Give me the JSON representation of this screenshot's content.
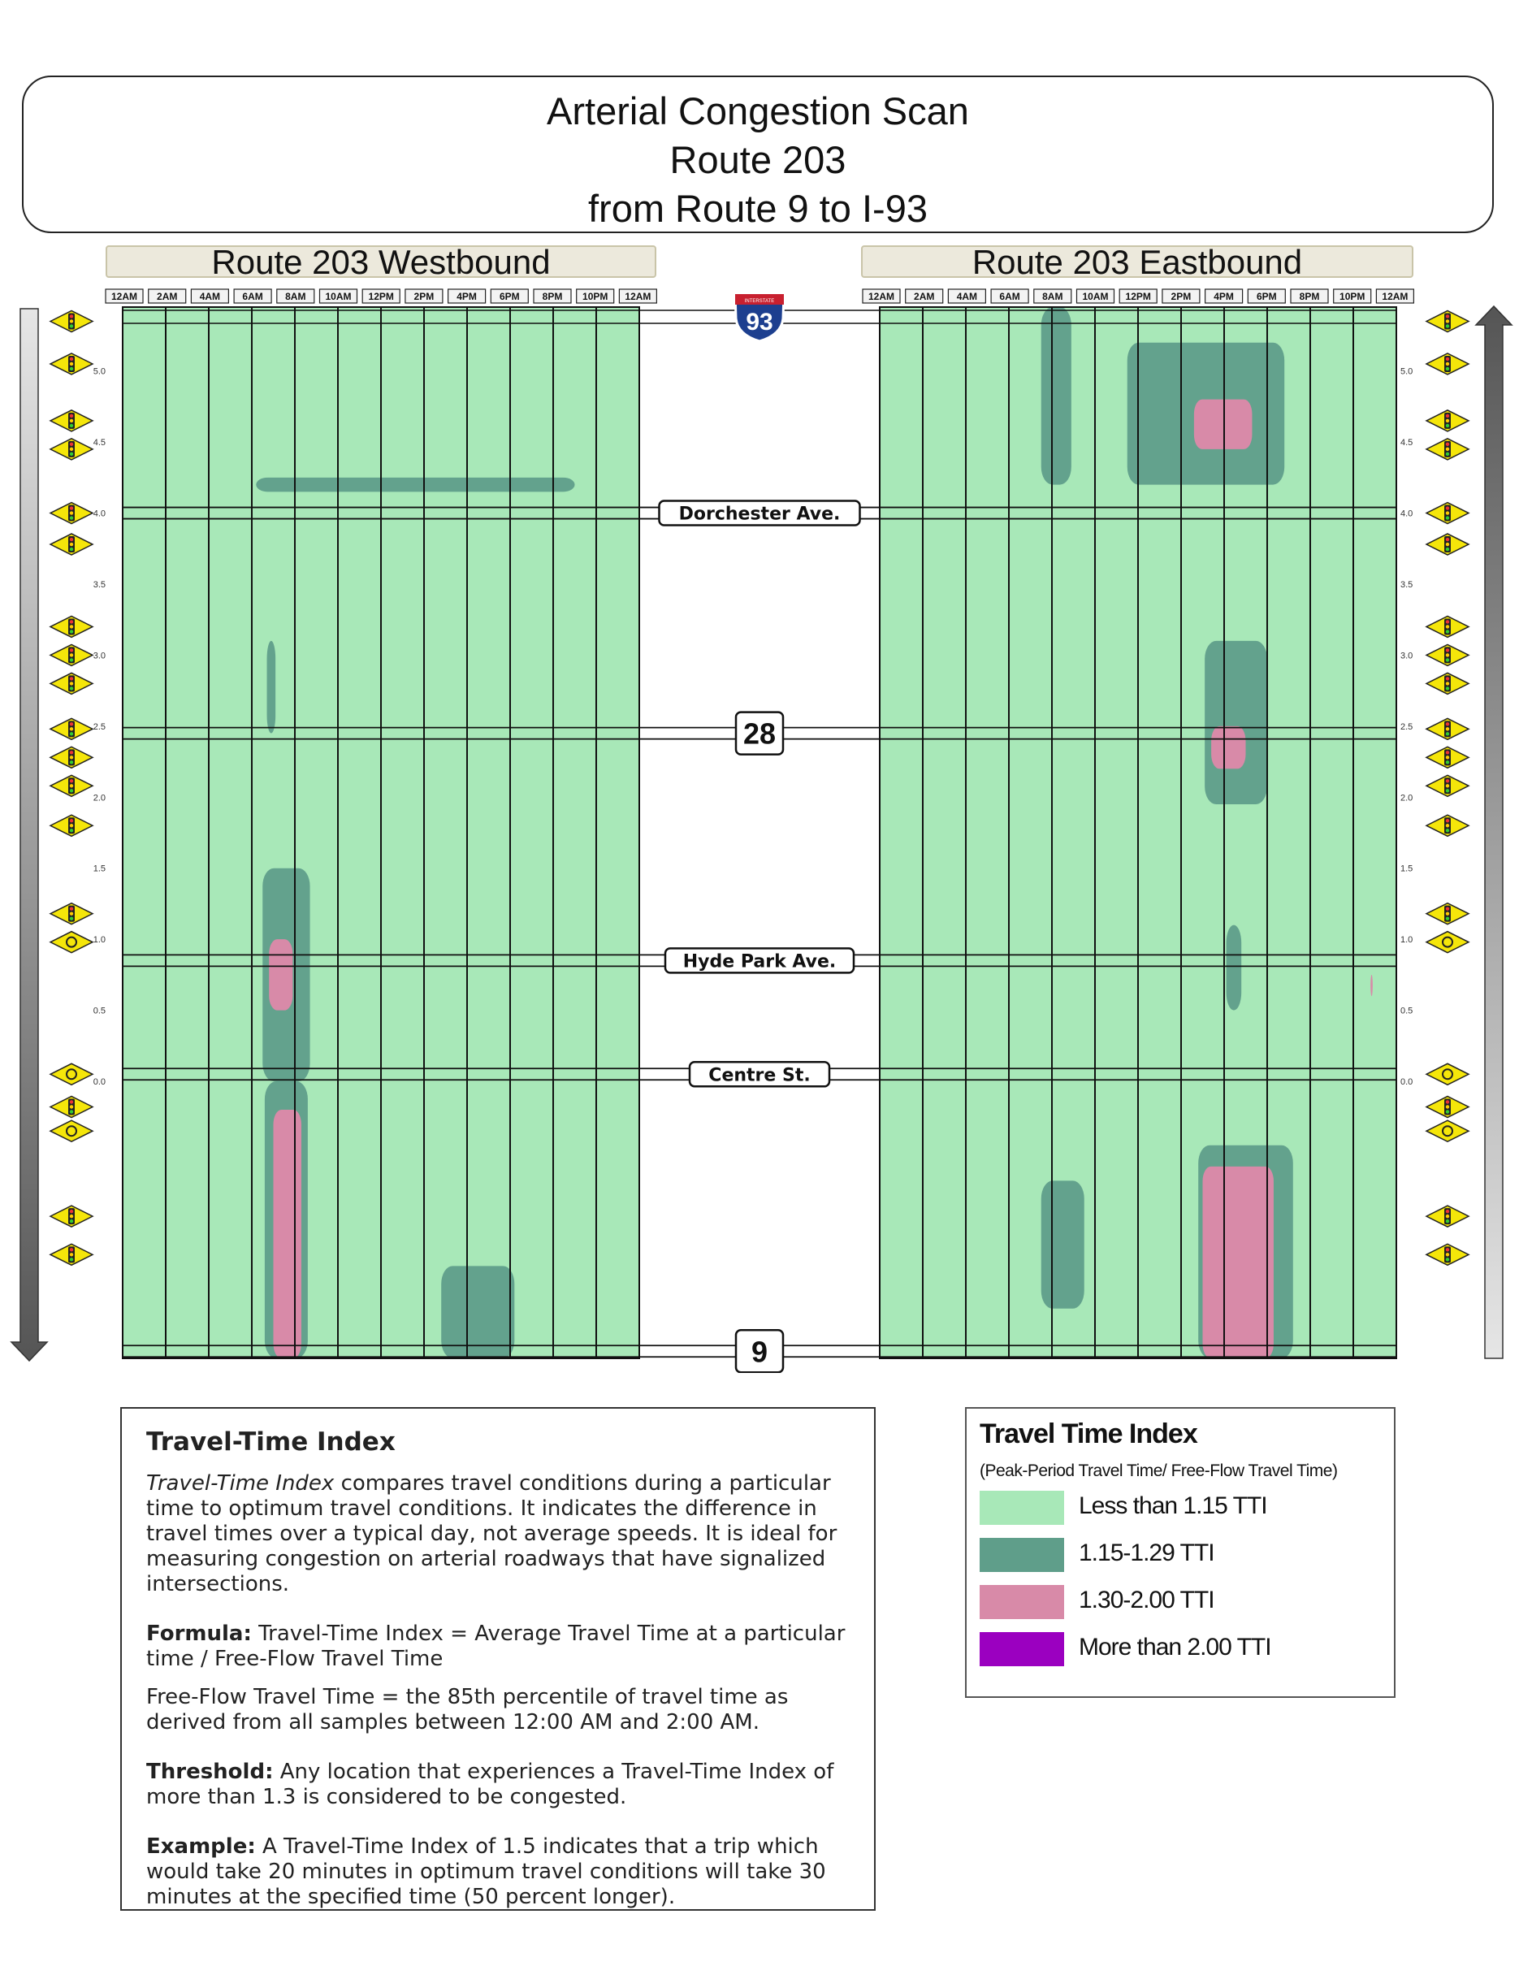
{
  "title": {
    "line1": "Arterial Congestion Scan",
    "line2": "Route 203",
    "line3": "from Route 9 to I-93"
  },
  "panels": {
    "westbound": "Route 203 Westbound",
    "eastbound": "Route 203 Eastbound"
  },
  "time_ticks": [
    "12AM",
    "2AM",
    "4AM",
    "6AM",
    "8AM",
    "10AM",
    "12PM",
    "2PM",
    "4PM",
    "6PM",
    "8PM",
    "10PM",
    "12AM"
  ],
  "mileposts": [
    "5.0",
    "4.5",
    "4.0",
    "3.5",
    "3.0",
    "2.5",
    "2.0",
    "1.5",
    "1.0",
    "0.5",
    "0.0"
  ],
  "cross_streets": [
    {
      "label": "Dorchester Ave.",
      "kind": "street",
      "milepost": 4.0
    },
    {
      "label": "28",
      "kind": "route",
      "milepost": 2.45
    },
    {
      "label": "Hyde Park Ave.",
      "kind": "street",
      "milepost": 0.85
    },
    {
      "label": "Centre St.",
      "kind": "street",
      "milepost": 0.05
    },
    {
      "label": "9",
      "kind": "route",
      "milepost": -1.9
    }
  ],
  "interstate": {
    "label": "93",
    "banner": "INTERSTATE"
  },
  "colors": {
    "low": "#a8e8b8",
    "moderate": "#5f9e8a",
    "congested": "#d88aa8",
    "severe": "#9b00c0",
    "sign_yellow": "#f5e60a"
  },
  "signals": {
    "westbound": [
      5.35,
      5.05,
      4.65,
      4.45,
      4.0,
      3.78,
      3.2,
      3.0,
      2.8,
      2.48,
      2.28,
      2.08,
      1.8,
      1.18,
      0.98,
      0.05,
      -0.18,
      -0.35,
      -0.95,
      -1.22
    ],
    "eastbound": [
      5.35,
      5.05,
      4.65,
      4.45,
      4.0,
      3.78,
      3.2,
      3.0,
      2.8,
      2.48,
      2.28,
      2.08,
      1.8,
      1.18,
      0.98,
      0.05,
      -0.18,
      -0.35,
      -0.95,
      -1.22
    ],
    "roundabouts": [
      0.98,
      0.05,
      -0.35
    ]
  },
  "chart_data": {
    "type": "heatmap",
    "title": "Arterial Congestion Scan Route 203 from Route 9 to I-93",
    "x_axis": {
      "label": "",
      "ticks": [
        "12AM",
        "2AM",
        "4AM",
        "6AM",
        "8AM",
        "10AM",
        "12PM",
        "2PM",
        "4PM",
        "6PM",
        "8PM",
        "10PM",
        "12AM"
      ],
      "range_hours": [
        0,
        24
      ]
    },
    "y_axis": {
      "label": "",
      "ticks": [
        "5.0",
        "4.5",
        "4.0",
        "3.5",
        "3.0",
        "2.5",
        "2.0",
        "1.5",
        "1.0",
        "0.5",
        "0.0"
      ],
      "range_miles": [
        -1.95,
        5.45
      ]
    },
    "legend": {
      "title": "Travel Time Index",
      "subtitle": "(Peak-Period Travel Time/ Free-Flow Travel Time)",
      "items": [
        {
          "label": "Less than 1.15 TTI",
          "color": "#a8e8b8"
        },
        {
          "label": "1.15-1.29 TTI",
          "color": "#5f9e8a"
        },
        {
          "label": "1.30-2.00 TTI",
          "color": "#d88aa8"
        },
        {
          "label": "More than 2.00 TTI",
          "color": "#9b00c0"
        }
      ]
    },
    "series": [
      {
        "name": "Route 203 Westbound",
        "congestion_zones": [
          {
            "level": "moderate",
            "hours": [
              6.6,
              8.6
            ],
            "miles": [
              -1.95,
              0.0
            ]
          },
          {
            "level": "congested",
            "hours": [
              7.0,
              8.3
            ],
            "miles": [
              -1.95,
              -0.2
            ]
          },
          {
            "level": "moderate",
            "hours": [
              6.5,
              8.7
            ],
            "miles": [
              0.0,
              1.5
            ]
          },
          {
            "level": "congested",
            "hours": [
              6.8,
              7.9
            ],
            "miles": [
              0.5,
              1.0
            ]
          },
          {
            "level": "moderate",
            "hours": [
              6.7,
              7.1
            ],
            "miles": [
              2.45,
              3.1
            ]
          },
          {
            "level": "moderate",
            "hours": [
              6.2,
              21.0
            ],
            "miles": [
              4.15,
              4.25
            ]
          },
          {
            "level": "moderate",
            "hours": [
              14.8,
              18.2
            ],
            "miles": [
              -1.95,
              -1.3
            ]
          }
        ]
      },
      {
        "name": "Route 203 Eastbound",
        "congestion_zones": [
          {
            "level": "moderate",
            "hours": [
              14.8,
              19.2
            ],
            "miles": [
              -1.95,
              -0.45
            ]
          },
          {
            "level": "congested",
            "hours": [
              15.0,
              18.3
            ],
            "miles": [
              -1.95,
              -0.6
            ]
          },
          {
            "level": "moderate",
            "hours": [
              7.5,
              9.5
            ],
            "miles": [
              -1.6,
              -0.7
            ]
          },
          {
            "level": "moderate",
            "hours": [
              15.1,
              18.0
            ],
            "miles": [
              1.95,
              3.1
            ]
          },
          {
            "level": "congested",
            "hours": [
              15.4,
              17.0
            ],
            "miles": [
              2.2,
              2.5
            ]
          },
          {
            "level": "moderate",
            "hours": [
              16.1,
              16.8
            ],
            "miles": [
              0.5,
              1.1
            ]
          },
          {
            "level": "moderate",
            "hours": [
              11.5,
              18.8
            ],
            "miles": [
              4.2,
              5.2
            ]
          },
          {
            "level": "congested",
            "hours": [
              14.6,
              17.3
            ],
            "miles": [
              4.45,
              4.8
            ]
          },
          {
            "level": "moderate",
            "hours": [
              7.5,
              8.9
            ],
            "miles": [
              4.2,
              5.45
            ]
          },
          {
            "level": "congested",
            "hours": [
              22.8,
              22.9
            ],
            "miles": [
              0.6,
              0.75
            ]
          }
        ]
      }
    ]
  },
  "tti_info": {
    "heading": "Travel-Time Index",
    "intro_term": "Travel-Time Index",
    "intro_rest": " compares travel conditions during a particular time to optimum travel conditions. It indicates the difference in travel times over a typical day, not average speeds. It is ideal for measuring congestion on arterial roadways that have signalized intersections.",
    "formula_label": "Formula:",
    "formula_text": " Travel-Time Index = Average Travel Time at a particular time / Free-Flow Travel Time",
    "freeflow_text": "Free-Flow Travel Time = the 85th percentile of travel time as derived from all samples between 12:00 AM and 2:00 AM.",
    "threshold_label": "Threshold:",
    "threshold_text": " Any location that experiences a Travel-Time Index of more than 1.3 is considered to be congested.",
    "example_label": "Example:",
    "example_text": " A Travel-Time Index of 1.5 indicates that a trip which would take 20 minutes in optimum travel conditions will take 30 minutes at the specified time (50 percent longer)."
  }
}
